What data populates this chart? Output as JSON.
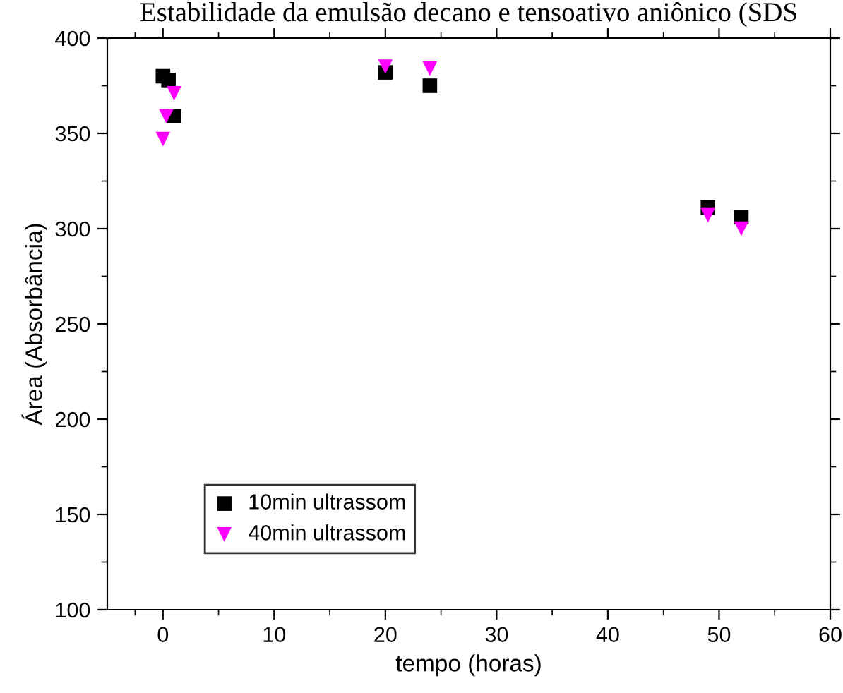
{
  "chart_data": {
    "type": "scatter",
    "title": "Estabilidade da emulsão decano e tensoativo aniônico (SDS",
    "xlabel": "tempo (horas)",
    "ylabel": "Área (Absorbância)",
    "xlim": [
      -5,
      60
    ],
    "xticks": [
      0,
      10,
      20,
      30,
      40,
      50,
      60
    ],
    "ylim": [
      100,
      400
    ],
    "yticks": [
      100,
      150,
      200,
      250,
      300,
      350,
      400
    ],
    "grid": false,
    "legend": "bottom left",
    "series": [
      {
        "name": "10min ultrassom",
        "color": "#000000",
        "marker": "square",
        "x": [
          0,
          0.5,
          1,
          20,
          24,
          49,
          52
        ],
        "values": [
          380,
          378,
          359,
          382,
          375,
          311,
          306
        ]
      },
      {
        "name": "40min ultrassom",
        "color": "#ff00ff",
        "marker": "triangle",
        "x": [
          0,
          0.3,
          1,
          20,
          24,
          49,
          52
        ],
        "values": [
          347,
          359,
          371,
          385,
          384,
          307,
          300
        ]
      }
    ]
  }
}
